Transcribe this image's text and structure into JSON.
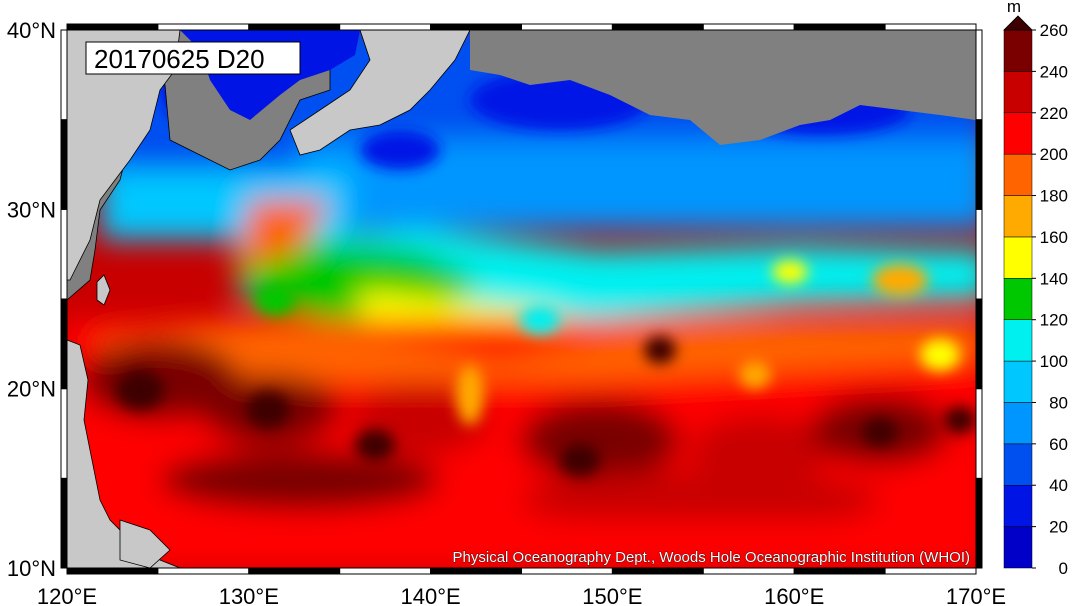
{
  "map": {
    "date_label": "20170625 D20",
    "credit": "Physical Oceanography Dept., Woods Hole Oceanographic Institution (WHOI)",
    "lon_ticks": [
      "120°E",
      "130°E",
      "140°E",
      "150°E",
      "160°E",
      "170°E"
    ],
    "lat_ticks": [
      "10°N",
      "20°N",
      "30°N",
      "40°N"
    ],
    "lon_range": [
      120,
      170
    ],
    "lat_range": [
      10,
      40
    ],
    "colors": {
      "land": "#808080",
      "land_outer": "#c8c8c8"
    }
  },
  "colorbar": {
    "unit": "m",
    "levels": [
      "0",
      "20",
      "40",
      "60",
      "80",
      "100",
      "120",
      "140",
      "160",
      "180",
      "200",
      "220",
      "240",
      "260"
    ],
    "colors": [
      "#0000c8",
      "#0014e6",
      "#0050f0",
      "#0096ff",
      "#00c8ff",
      "#00f0f0",
      "#00c800",
      "#ffff00",
      "#ffaa00",
      "#ff6400",
      "#ff0000",
      "#c80000",
      "#7a0000",
      "#3c0000"
    ]
  }
}
